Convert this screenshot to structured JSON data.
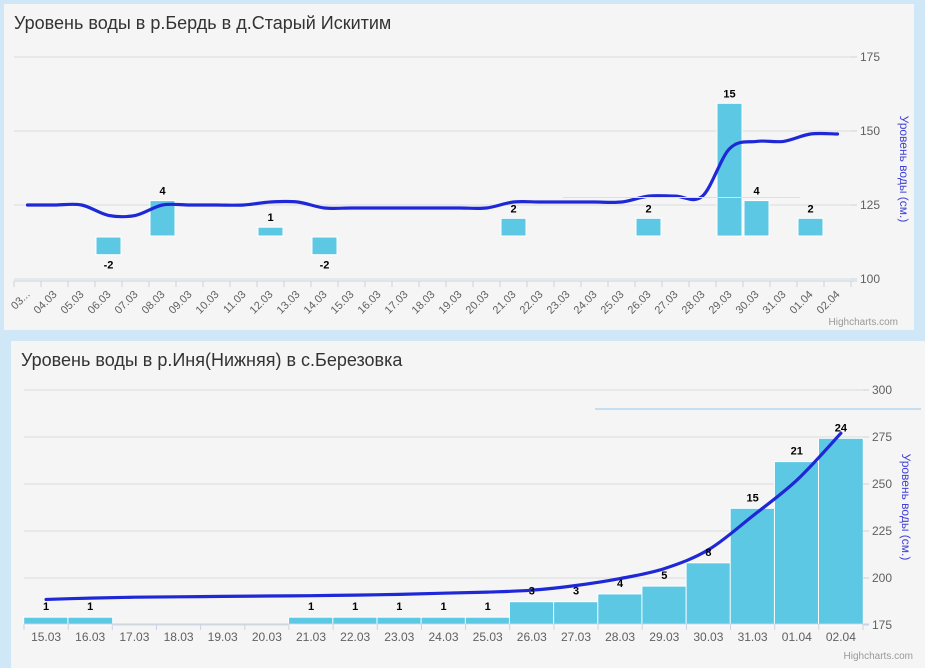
{
  "credits_label": "Highcharts.com",
  "colors": {
    "page_background": "#cfe7f7",
    "chart_background": "#f5f5f5",
    "bar": "#5cc8e3",
    "line": "#1e28d7",
    "grid": "#dadada",
    "axis": "#c8d4e3",
    "axis_text": "#606060",
    "y_axis_title": "#4141d7",
    "title_text": "#333333",
    "data_label": "#000000",
    "credits_text": "#999999"
  },
  "chart_data": [
    {
      "type": "line+column",
      "title": "Уровень воды в р.Бердь в д.Старый Искитим",
      "ylabel": "Уровень воды (см.)",
      "yticks": [
        175,
        150,
        125,
        100
      ],
      "ylim": [
        99,
        176
      ],
      "grid": "horizontal",
      "legend": "none",
      "x_labels_rotated": true,
      "categories": [
        "03...",
        "04.03",
        "05.03",
        "06.03",
        "07.03",
        "08.03",
        "09.03",
        "10.03",
        "11.03",
        "12.03",
        "13.03",
        "14.03",
        "15.03",
        "16.03",
        "17.03",
        "18.03",
        "19.03",
        "20.03",
        "21.03",
        "22.03",
        "23.03",
        "24.03",
        "25.03",
        "26.03",
        "27.03",
        "28.03",
        "29.03",
        "30.03",
        "31.03",
        "01.04",
        "02.04"
      ],
      "series": [
        {
          "type": "spline",
          "values": [
            125,
            125,
            125,
            121.5,
            121.5,
            125,
            125,
            125,
            125,
            126,
            126,
            124,
            124,
            124,
            124,
            124,
            124,
            124,
            126,
            126,
            126,
            126,
            126,
            128,
            128,
            128,
            144,
            146.5,
            146.5,
            149,
            149
          ]
        },
        {
          "type": "column",
          "values": [
            null,
            null,
            null,
            -2,
            null,
            4,
            null,
            null,
            null,
            1,
            null,
            -2,
            null,
            null,
            null,
            null,
            null,
            null,
            2,
            null,
            null,
            null,
            null,
            2,
            null,
            null,
            15,
            4,
            null,
            2,
            null
          ]
        }
      ]
    },
    {
      "type": "line+column",
      "title": "Уровень воды в р.Иня(Нижняя) в с.Березовка",
      "ylabel": "Уровень воды (см.)",
      "yticks": [
        300,
        275,
        250,
        225,
        200,
        175
      ],
      "ylim": [
        175,
        300
      ],
      "grid": "horizontal",
      "legend": "none",
      "x_labels_rotated": false,
      "categories": [
        "15.03",
        "16.03",
        "17.03",
        "18.03",
        "19.03",
        "20.03",
        "21.03",
        "22.03",
        "23.03",
        "24.03",
        "25.03",
        "26.03",
        "27.03",
        "28.03",
        "29.03",
        "30.03",
        "31.03",
        "01.04",
        "02.04"
      ],
      "series": [
        {
          "type": "spline",
          "values": [
            188.6,
            189.3,
            189.8,
            190,
            190.2,
            190.4,
            190.6,
            190.9,
            191.3,
            191.9,
            192.5,
            193.5,
            196,
            199.7,
            205,
            215,
            233,
            252,
            277
          ]
        },
        {
          "type": "column",
          "values": [
            1,
            1,
            null,
            null,
            null,
            null,
            1,
            1,
            1,
            1,
            1,
            3,
            3,
            4,
            5,
            8,
            15,
            21,
            24
          ]
        }
      ]
    }
  ]
}
